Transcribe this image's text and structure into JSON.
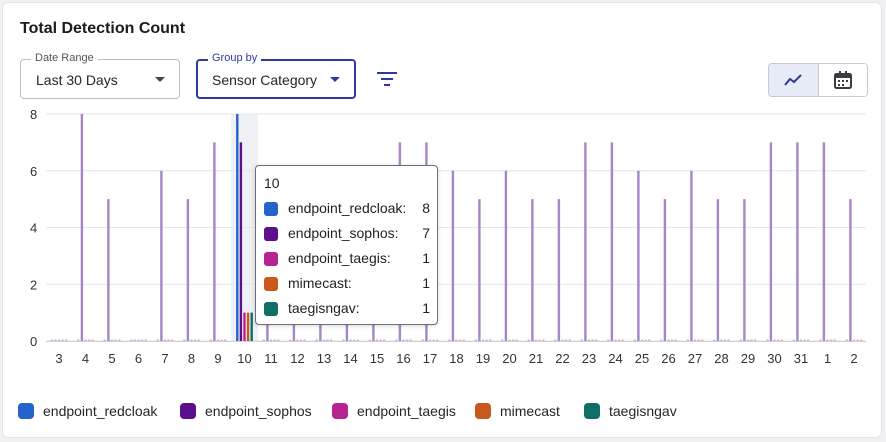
{
  "title": "Total Detection Count",
  "controls": {
    "date_range": {
      "label": "Date Range",
      "value": "Last 30 Days"
    },
    "group_by": {
      "label": "Group by",
      "value": "Sensor Category"
    },
    "filter_icon": "filter-lines-icon",
    "view_toggle": {
      "active": "line-chart-icon",
      "other": "calendar-icon"
    }
  },
  "chart_data": {
    "type": "bar",
    "categories": [
      "3",
      "4",
      "5",
      "6",
      "7",
      "8",
      "9",
      "10",
      "11",
      "12",
      "13",
      "14",
      "15",
      "16",
      "17",
      "18",
      "19",
      "20",
      "21",
      "22",
      "23",
      "24",
      "25",
      "26",
      "27",
      "28",
      "29",
      "30",
      "31",
      "1",
      "2"
    ],
    "series": [
      {
        "name": "endpoint_redcloak",
        "color": "#2563cc",
        "values": [
          0,
          0,
          0,
          0,
          0,
          0,
          0,
          8,
          0,
          0,
          0,
          0,
          0,
          0,
          0,
          0,
          0,
          0,
          0,
          0,
          0,
          0,
          0,
          0,
          0,
          0,
          0,
          0,
          0,
          0,
          0
        ]
      },
      {
        "name": "endpoint_sophos",
        "color": "#5b0f8a",
        "values": [
          0,
          8,
          5,
          0,
          6,
          5,
          7,
          7,
          5,
          5,
          6,
          6,
          5,
          7,
          7,
          6,
          5,
          6,
          5,
          5,
          7,
          7,
          6,
          5,
          6,
          5,
          5,
          7,
          7,
          7,
          5
        ]
      },
      {
        "name": "endpoint_taegis",
        "color": "#b8248f",
        "values": [
          0,
          0,
          0,
          0,
          0,
          0,
          0,
          1,
          0,
          0,
          0,
          0,
          0,
          0,
          0,
          0,
          0,
          0,
          0,
          0,
          0,
          0,
          0,
          0,
          0,
          0,
          0,
          0,
          0,
          0,
          0
        ]
      },
      {
        "name": "mimecast",
        "color": "#c9581c",
        "values": [
          0,
          0,
          0,
          0,
          0,
          0,
          0,
          1,
          0,
          0,
          0,
          0,
          0,
          0,
          0,
          0,
          0,
          0,
          0,
          0,
          0,
          0,
          0,
          0,
          0,
          0,
          0,
          0,
          0,
          0,
          0
        ]
      },
      {
        "name": "taegisngav",
        "color": "#0f6e66",
        "values": [
          0,
          0,
          0,
          0,
          0,
          0,
          0,
          1,
          0,
          0,
          0,
          0,
          0,
          0,
          0,
          0,
          0,
          0,
          0,
          0,
          0,
          0,
          0,
          0,
          0,
          0,
          0,
          0,
          0,
          0,
          0
        ]
      }
    ],
    "ylim": [
      0,
      8
    ],
    "yticks": [
      0,
      2,
      4,
      6,
      8
    ],
    "grid": true,
    "highlighted_category": "10",
    "faded_series_color": "#a885c7",
    "legend": "bottom-left"
  },
  "tooltip": {
    "title": "10",
    "rows": [
      {
        "name": "endpoint_redcloak:",
        "value": "8",
        "color": "#2563cc"
      },
      {
        "name": "endpoint_sophos:",
        "value": "7",
        "color": "#5b0f8a"
      },
      {
        "name": "endpoint_taegis:",
        "value": "1",
        "color": "#b8248f"
      },
      {
        "name": "mimecast:",
        "value": "1",
        "color": "#c9581c"
      },
      {
        "name": "taegisngav:",
        "value": "1",
        "color": "#0f6e66"
      }
    ]
  },
  "legend": [
    {
      "name": "endpoint_redcloak",
      "color": "#2563cc"
    },
    {
      "name": "endpoint_sophos",
      "color": "#5b0f8a"
    },
    {
      "name": "endpoint_taegis",
      "color": "#b8248f"
    },
    {
      "name": "mimecast",
      "color": "#c9581c"
    },
    {
      "name": "taegisngav",
      "color": "#0f6e66"
    }
  ]
}
